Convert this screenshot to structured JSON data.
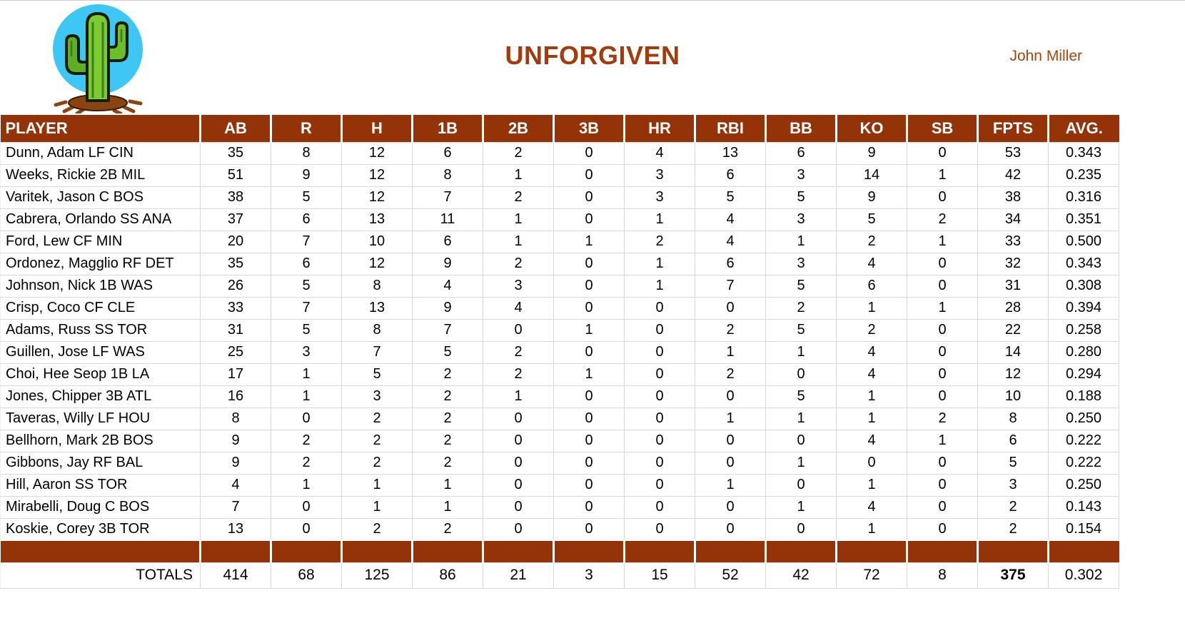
{
  "header": {
    "title": "UNFORGIVEN",
    "owner": "John Miller",
    "logo_icon": "cactus-logo"
  },
  "colors": {
    "accent_brown": "#943208",
    "title_text": "#a33b0c",
    "grid_line": "#d9d9d9",
    "logo_sky_blue": "#3ec6f4",
    "cactus_green": "#6cbe2b",
    "dirt_brown": "#8a4412"
  },
  "table": {
    "columns": [
      "PLAYER",
      "AB",
      "R",
      "H",
      "1B",
      "2B",
      "3B",
      "HR",
      "RBI",
      "BB",
      "KO",
      "SB",
      "FPTS",
      "AVG."
    ],
    "rows": [
      [
        "Dunn, Adam LF CIN",
        35,
        8,
        12,
        6,
        2,
        0,
        4,
        13,
        6,
        9,
        0,
        53,
        "0.343"
      ],
      [
        "Weeks, Rickie 2B MIL",
        51,
        9,
        12,
        8,
        1,
        0,
        3,
        6,
        3,
        14,
        1,
        42,
        "0.235"
      ],
      [
        "Varitek, Jason C BOS",
        38,
        5,
        12,
        7,
        2,
        0,
        3,
        5,
        5,
        9,
        0,
        38,
        "0.316"
      ],
      [
        "Cabrera, Orlando SS ANA",
        37,
        6,
        13,
        11,
        1,
        0,
        1,
        4,
        3,
        5,
        2,
        34,
        "0.351"
      ],
      [
        "Ford, Lew CF MIN",
        20,
        7,
        10,
        6,
        1,
        1,
        2,
        4,
        1,
        2,
        1,
        33,
        "0.500"
      ],
      [
        "Ordonez, Magglio RF DET",
        35,
        6,
        12,
        9,
        2,
        0,
        1,
        6,
        3,
        4,
        0,
        32,
        "0.343"
      ],
      [
        "Johnson, Nick 1B WAS",
        26,
        5,
        8,
        4,
        3,
        0,
        1,
        7,
        5,
        6,
        0,
        31,
        "0.308"
      ],
      [
        "Crisp, Coco CF CLE",
        33,
        7,
        13,
        9,
        4,
        0,
        0,
        0,
        2,
        1,
        1,
        28,
        "0.394"
      ],
      [
        "Adams, Russ SS TOR",
        31,
        5,
        8,
        7,
        0,
        1,
        0,
        2,
        5,
        2,
        0,
        22,
        "0.258"
      ],
      [
        "Guillen, Jose LF WAS",
        25,
        3,
        7,
        5,
        2,
        0,
        0,
        1,
        1,
        4,
        0,
        14,
        "0.280"
      ],
      [
        "Choi, Hee Seop 1B LA",
        17,
        1,
        5,
        2,
        2,
        1,
        0,
        2,
        0,
        4,
        0,
        12,
        "0.294"
      ],
      [
        "Jones, Chipper 3B ATL",
        16,
        1,
        3,
        2,
        1,
        0,
        0,
        0,
        5,
        1,
        0,
        10,
        "0.188"
      ],
      [
        "Taveras, Willy LF HOU",
        8,
        0,
        2,
        2,
        0,
        0,
        0,
        1,
        1,
        1,
        2,
        8,
        "0.250"
      ],
      [
        "Bellhorn, Mark 2B BOS",
        9,
        2,
        2,
        2,
        0,
        0,
        0,
        0,
        0,
        4,
        1,
        6,
        "0.222"
      ],
      [
        "Gibbons, Jay RF BAL",
        9,
        2,
        2,
        2,
        0,
        0,
        0,
        0,
        1,
        0,
        0,
        5,
        "0.222"
      ],
      [
        "Hill, Aaron SS TOR",
        4,
        1,
        1,
        1,
        0,
        0,
        0,
        1,
        0,
        1,
        0,
        3,
        "0.250"
      ],
      [
        "Mirabelli, Doug C BOS",
        7,
        0,
        1,
        1,
        0,
        0,
        0,
        0,
        1,
        4,
        0,
        2,
        "0.143"
      ],
      [
        "Koskie, Corey 3B TOR",
        13,
        0,
        2,
        2,
        0,
        0,
        0,
        0,
        0,
        1,
        0,
        2,
        "0.154"
      ]
    ],
    "totals_label": "TOTALS",
    "totals": [
      414,
      68,
      125,
      86,
      21,
      3,
      15,
      52,
      42,
      72,
      8,
      375,
      "0.302"
    ]
  }
}
